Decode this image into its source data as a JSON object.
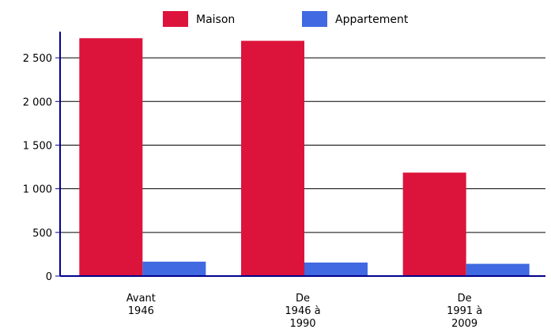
{
  "chart_data": {
    "type": "bar",
    "categories": [
      [
        "Avant",
        "1946"
      ],
      [
        "De",
        "1946 à",
        "1990"
      ],
      [
        "De",
        "1991 à",
        "2009"
      ]
    ],
    "series": [
      {
        "name": "Maison",
        "color": "#dc143c",
        "values": [
          2725,
          2695,
          1185
        ]
      },
      {
        "name": "Appartement",
        "color": "#4169e1",
        "values": [
          165,
          155,
          140
        ]
      }
    ],
    "ylim": [
      0,
      2800
    ],
    "yticks": [
      {
        "value": 0,
        "label": "0"
      },
      {
        "value": 500,
        "label": "500"
      },
      {
        "value": 1000,
        "label": "1 000"
      },
      {
        "value": 1500,
        "label": "1 500"
      },
      {
        "value": 2000,
        "label": "2 000"
      },
      {
        "value": 2500,
        "label": "2 500"
      }
    ],
    "grid": true,
    "legend_position": "top-center",
    "axis_color": "#00008b"
  }
}
